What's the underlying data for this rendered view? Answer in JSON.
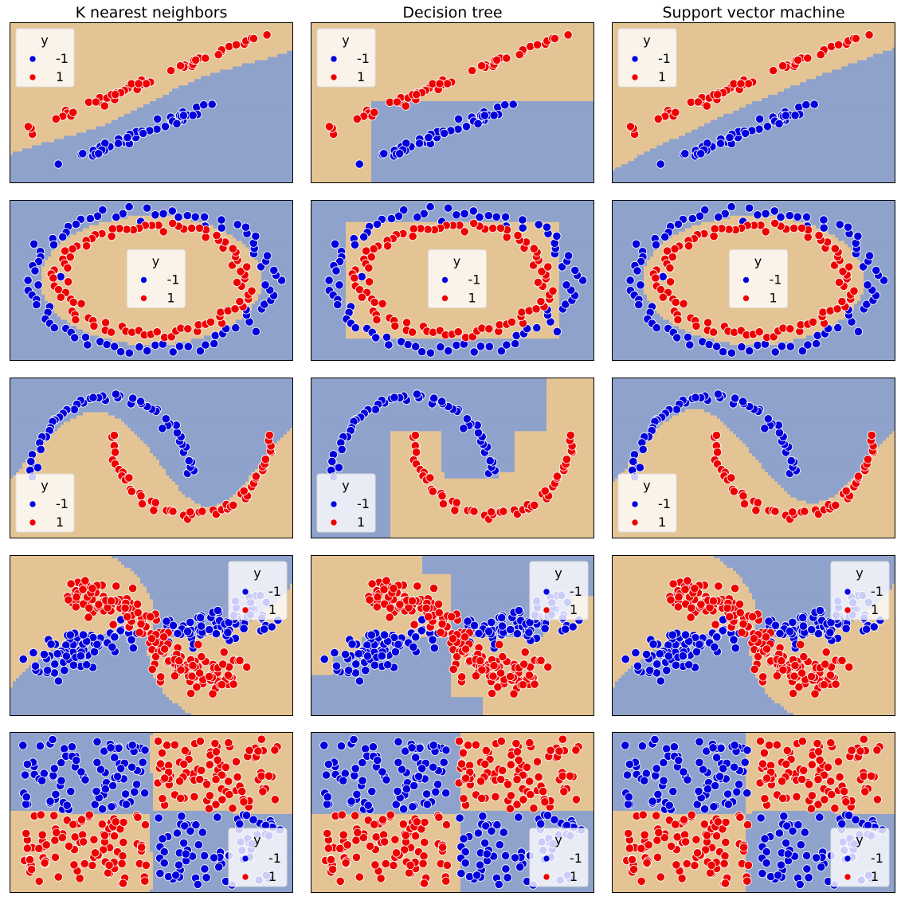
{
  "chart_data": {
    "type": "scatter",
    "grid_layout": "5 rows x 3 columns",
    "column_titles": [
      "K nearest neighbors",
      "Decision tree",
      "Support vector machine"
    ],
    "legend": {
      "title": "y",
      "labels": [
        "-1",
        "1"
      ]
    },
    "legend_placement_by_row": [
      "upper-left",
      "center",
      "lower-left",
      "upper-right",
      "lower-right"
    ],
    "class_colors": {
      "-1": "#0000dd",
      "1": "#ee0000"
    },
    "region_colors": {
      "-1": "#8fa2cb",
      "1": "#e4c494"
    },
    "axes_shown": false,
    "grid": false,
    "datasets": [
      {
        "name": "linear",
        "xlim": [
          -3.2,
          3.2
        ],
        "ylim": [
          -1.9,
          1.9
        ]
      },
      {
        "name": "circles",
        "xlim": [
          -1.3,
          1.3
        ],
        "ylim": [
          -1.15,
          1.15
        ]
      },
      {
        "name": "moons",
        "xlim": [
          -1.3,
          2.3
        ],
        "ylim": [
          -0.8,
          1.25
        ]
      },
      {
        "name": "spiral",
        "xlim": [
          -1.9,
          1.9
        ],
        "ylim": [
          -1.6,
          1.6
        ]
      },
      {
        "name": "xor",
        "xlim": [
          -1.1,
          1.1
        ],
        "ylim": [
          -1.1,
          1.1
        ]
      }
    ]
  }
}
